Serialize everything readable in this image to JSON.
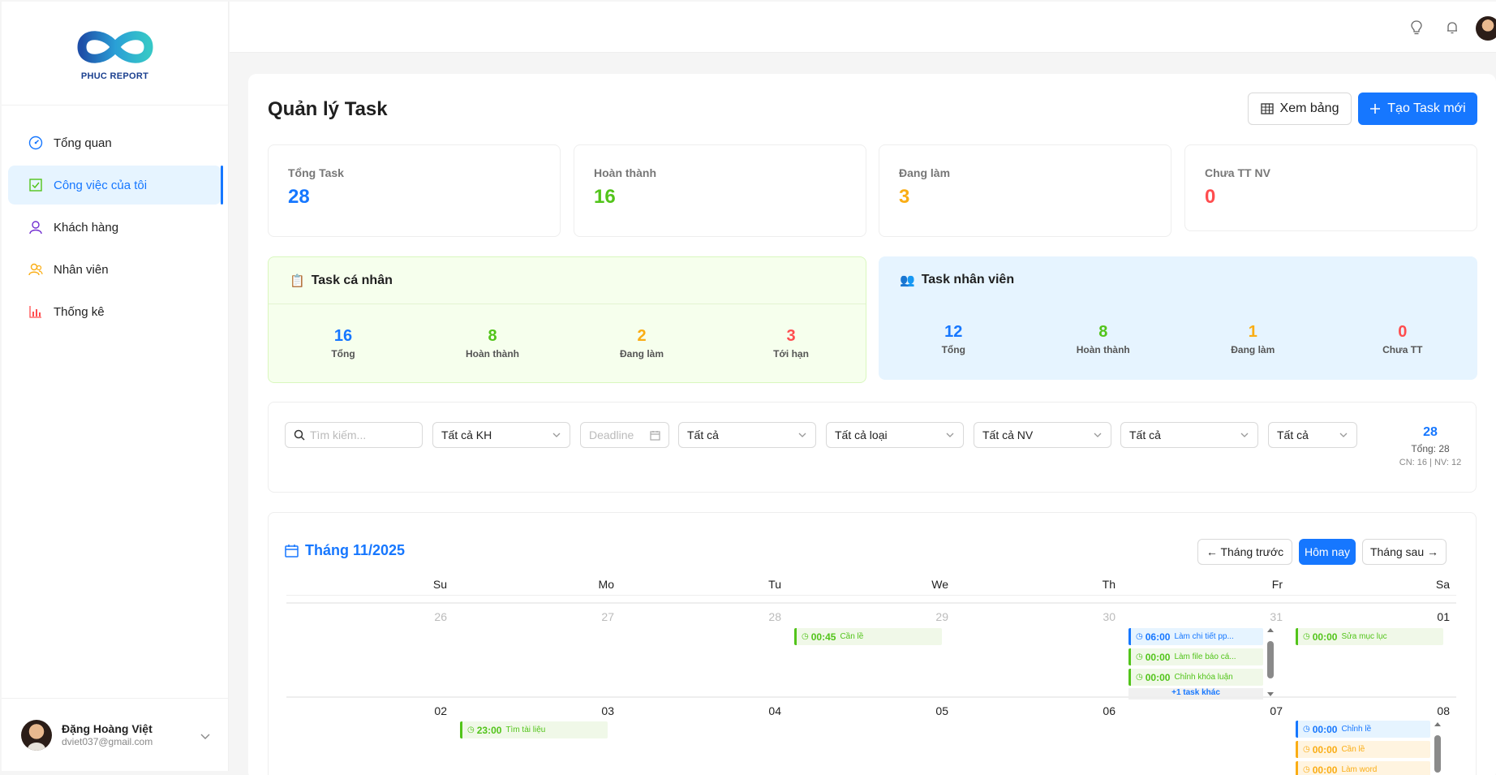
{
  "brand": {
    "name": "PHUC REPORT",
    "colors": {
      "primary": "#1677ff",
      "green": "#52c41a",
      "orange": "#faad14",
      "red": "#ff4d4f"
    }
  },
  "sidebar": {
    "items": [
      {
        "label": "Tổng quan",
        "icon": "dashboard-icon"
      },
      {
        "label": "Công việc của tôi",
        "icon": "checkbox-icon",
        "active": true
      },
      {
        "label": "Khách hàng",
        "icon": "user-icon"
      },
      {
        "label": "Nhân viên",
        "icon": "team-icon"
      },
      {
        "label": "Thống kê",
        "icon": "bar-chart-icon"
      }
    ],
    "user": {
      "name": "Đặng Hoàng Việt",
      "email": "dviet037@gmail.com"
    }
  },
  "header": {
    "icons": [
      "bulb-icon",
      "bell-icon",
      "avatar"
    ]
  },
  "page": {
    "title": "Quản lý Task",
    "view_table_label": "Xem bảng",
    "create_label": "Tạo Task mới"
  },
  "stats": [
    {
      "label": "Tổng Task",
      "value": "28",
      "color": "#1677ff"
    },
    {
      "label": "Hoàn thành",
      "value": "16",
      "color": "#52c41a"
    },
    {
      "label": "Đang làm",
      "value": "3",
      "color": "#faad14"
    },
    {
      "label": "Chưa TT NV",
      "value": "0",
      "color": "#ff4d4f"
    }
  ],
  "personal": {
    "title": "Task cá nhân",
    "stats": [
      {
        "value": "16",
        "label": "Tổng",
        "color": "#1677ff"
      },
      {
        "value": "8",
        "label": "Hoàn thành",
        "color": "#52c41a"
      },
      {
        "value": "2",
        "label": "Đang làm",
        "color": "#faad14"
      },
      {
        "value": "3",
        "label": "Tới hạn",
        "color": "#ff4d4f"
      }
    ]
  },
  "staff": {
    "title": "Task nhân viên",
    "stats": [
      {
        "value": "12",
        "label": "Tổng",
        "color": "#1677ff"
      },
      {
        "value": "8",
        "label": "Hoàn thành",
        "color": "#52c41a"
      },
      {
        "value": "1",
        "label": "Đang làm",
        "color": "#faad14"
      },
      {
        "value": "0",
        "label": "Chưa TT",
        "color": "#ff4d4f"
      }
    ]
  },
  "filters": {
    "search_placeholder": "Tìm kiếm...",
    "customer": "Tất cả KH",
    "deadline_placeholder": "Deadline",
    "status": "Tất cả",
    "type": "Tất cả loại",
    "staff": "Tất cả NV",
    "priority": "Tất cả",
    "scope": "Tất cả",
    "summary": {
      "count": "28",
      "total": "Tổng: 28",
      "split": "CN: 16 | NV: 12"
    }
  },
  "calendar": {
    "title": "Tháng 11/2025",
    "prev_label": "← Tháng trước",
    "today_label": "Hôm nay",
    "next_label": "Tháng sau →",
    "weekdays": [
      "Su",
      "Mo",
      "Tu",
      "We",
      "Th",
      "Fr",
      "Sa"
    ],
    "week1": {
      "days": [
        "26",
        "27",
        "28",
        "29",
        "30",
        "31",
        "01"
      ],
      "we_event": {
        "time": "00:45",
        "title": "Cần lề"
      },
      "fr_events": [
        {
          "time": "06:00",
          "title": "Làm chi tiết pp..."
        },
        {
          "time": "00:00",
          "title": "Làm file báo cá..."
        },
        {
          "time": "00:00",
          "title": "Chỉnh khóa luận"
        }
      ],
      "fr_more": "+1 task khác",
      "sa_event": {
        "time": "00:00",
        "title": "Sửa mục lục"
      }
    },
    "week2": {
      "days": [
        "02",
        "03",
        "04",
        "05",
        "06",
        "07",
        "08"
      ],
      "mo_event": {
        "time": "23:00",
        "title": "Tìm tài liệu"
      },
      "sa_events": [
        {
          "time": "00:00",
          "title": "Chỉnh lề"
        },
        {
          "time": "00:00",
          "title": "Cần lề"
        },
        {
          "time": "00:00",
          "title": "Làm word"
        }
      ]
    }
  }
}
